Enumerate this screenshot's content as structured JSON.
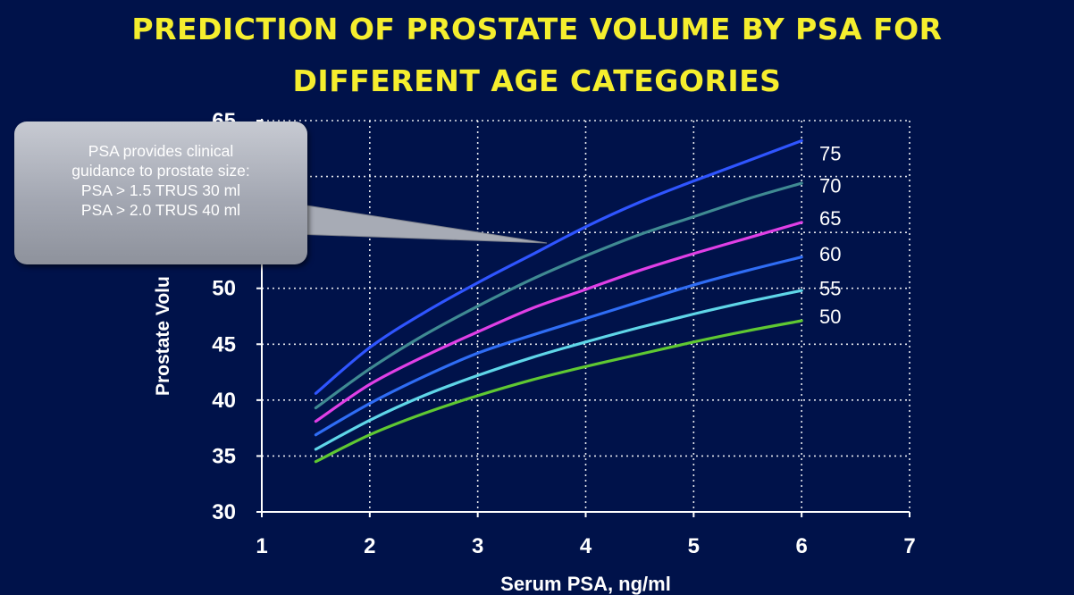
{
  "slide": {
    "title_lines": [
      "PREDICTION OF PROSTATE VOLUME BY PSA FOR",
      "DIFFERENT AGE CATEGORIES"
    ]
  },
  "callout": {
    "lines": [
      "PSA provides clinical",
      "guidance to prostate size:",
      "PSA > 1.5  TRUS 30 ml",
      "PSA > 2.0 TRUS 40 ml"
    ]
  },
  "colors": {
    "background": "#00124a",
    "title": "#f5ee2e",
    "text": "#ffffff"
  },
  "chart_data": {
    "type": "line",
    "title": "",
    "xlabel": "Serum PSA, ng/ml",
    "ylabel": "Prostate Volu",
    "xlim": [
      1,
      7
    ],
    "ylim": [
      30,
      65
    ],
    "xticks": [
      1,
      2,
      3,
      4,
      5,
      6,
      7
    ],
    "yticks": [
      30,
      35,
      40,
      45,
      50
    ],
    "ytick_partial_top": "65",
    "grid": true,
    "grid_style": "dotted",
    "legend": "line-end labels at right",
    "series": [
      {
        "name": "75",
        "color": "#2f55ff",
        "x": [
          1.5,
          2,
          2.5,
          3,
          3.5,
          4,
          4.5,
          5,
          5.5,
          6
        ],
        "y": [
          40.6,
          44.7,
          47.8,
          50.5,
          53.0,
          55.5,
          57.7,
          59.6,
          61.4,
          63.2
        ]
      },
      {
        "name": "70",
        "color": "#3f8a92",
        "x": [
          1.5,
          2,
          2.5,
          3,
          3.5,
          4,
          4.5,
          5,
          5.5,
          6
        ],
        "y": [
          39.3,
          42.8,
          45.8,
          48.4,
          50.8,
          52.9,
          54.8,
          56.4,
          58.0,
          59.4
        ]
      },
      {
        "name": "65",
        "color": "#e03fe6",
        "x": [
          1.5,
          2,
          2.5,
          3,
          3.5,
          4,
          4.5,
          5,
          5.5,
          6
        ],
        "y": [
          38.1,
          41.4,
          43.9,
          46.1,
          48.2,
          49.9,
          51.6,
          53.1,
          54.5,
          55.9
        ]
      },
      {
        "name": "60",
        "color": "#2f6df5",
        "x": [
          1.5,
          2,
          2.5,
          3,
          3.5,
          4,
          4.5,
          5,
          5.5,
          6
        ],
        "y": [
          36.9,
          39.7,
          42.1,
          44.2,
          45.8,
          47.3,
          48.8,
          50.3,
          51.6,
          52.8
        ]
      },
      {
        "name": "55",
        "color": "#5fd6e8",
        "x": [
          1.5,
          2,
          2.5,
          3,
          3.5,
          4,
          4.5,
          5,
          5.5,
          6
        ],
        "y": [
          35.6,
          38.2,
          40.4,
          42.2,
          43.8,
          45.2,
          46.5,
          47.7,
          48.8,
          49.8
        ]
      },
      {
        "name": "50",
        "color": "#5fc832",
        "x": [
          1.5,
          2,
          2.5,
          3,
          3.5,
          4,
          4.5,
          5,
          5.5,
          6
        ],
        "y": [
          34.5,
          36.9,
          38.8,
          40.4,
          41.8,
          43.0,
          44.1,
          45.2,
          46.2,
          47.1
        ]
      }
    ],
    "line_end_labels": [
      {
        "text": "75",
        "y": 62.1
      },
      {
        "text": "70",
        "y": 59.2
      },
      {
        "text": "65",
        "y": 56.3
      },
      {
        "text": "60",
        "y": 53.1
      },
      {
        "text": "55",
        "y": 50.0
      },
      {
        "text": "50",
        "y": 47.5
      }
    ]
  }
}
